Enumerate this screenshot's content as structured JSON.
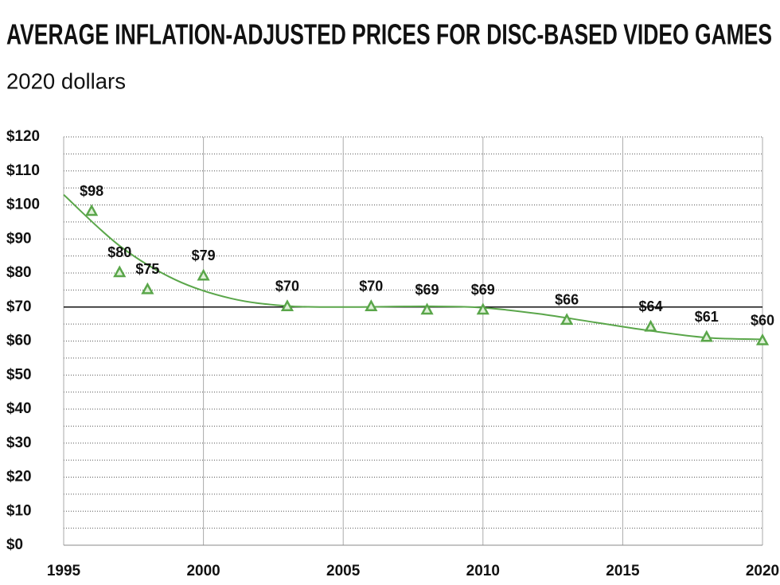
{
  "chart_data": {
    "type": "scatter",
    "title": "AVERAGE INFLATION-ADJUSTED PRICES FOR DISC-BASED VIDEO GAMES",
    "subtitle": "2020 dollars",
    "x": [
      1996,
      1997,
      1998,
      2000,
      2003,
      2006,
      2008,
      2010,
      2013,
      2016,
      2018,
      2020
    ],
    "values": [
      98,
      80,
      75,
      79,
      70,
      70,
      69,
      69,
      66,
      64,
      61,
      60
    ],
    "value_labels": [
      "$98",
      "$80",
      "$75",
      "$79",
      "$70",
      "$70",
      "$69",
      "$69",
      "$66",
      "$64",
      "$61",
      "$60"
    ],
    "color": "#5aa64a",
    "trendline": {
      "x": [
        1995,
        1997,
        1999,
        2001,
        2003,
        2005,
        2008,
        2010,
        2012,
        2014,
        2016,
        2018,
        2020
      ],
      "values": [
        103,
        88,
        78,
        72.5,
        70.3,
        70,
        70.2,
        69.8,
        68,
        65.5,
        63,
        61,
        60.5
      ],
      "color": "#5aa64a"
    },
    "reference_line": 70,
    "xlim": [
      1995,
      2020
    ],
    "xticks": [
      1995,
      2000,
      2005,
      2010,
      2015,
      2020
    ],
    "ylim": [
      0,
      120
    ],
    "yticks": [
      {
        "value": 0,
        "label": "$0"
      },
      {
        "value": 10,
        "label": "$10"
      },
      {
        "value": 20,
        "label": "$20"
      },
      {
        "value": 30,
        "label": "$30"
      },
      {
        "value": 40,
        "label": "$40"
      },
      {
        "value": 50,
        "label": "$50"
      },
      {
        "value": 60,
        "label": "$60"
      },
      {
        "value": 70,
        "label": "$70"
      },
      {
        "value": 80,
        "label": "$80"
      },
      {
        "value": 90,
        "label": "$90"
      },
      {
        "value": 100,
        "label": "$100"
      },
      {
        "value": 110,
        "label": "$110"
      },
      {
        "value": 120,
        "label": "$120"
      }
    ],
    "minor_yticks": [
      5,
      15,
      25,
      35,
      45,
      55,
      65,
      75,
      85,
      95,
      105,
      115
    ],
    "grid": true
  }
}
